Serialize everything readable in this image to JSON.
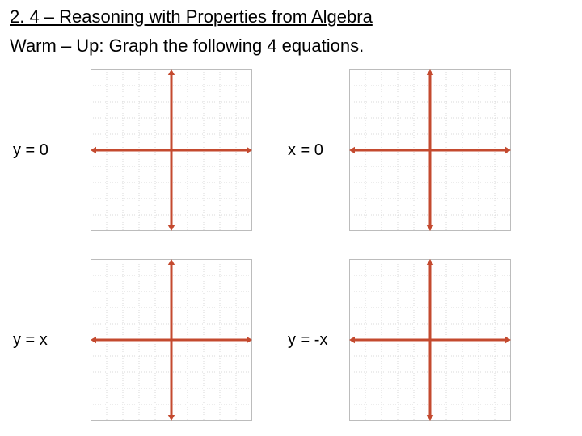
{
  "title": "2. 4 – Reasoning with Properties from Algebra",
  "subtitle": "Warm – Up: Graph the following 4 equations.",
  "equations": {
    "eq1": "y = 0",
    "eq2": "x = 0",
    "eq3": "y = x",
    "eq4": "y = -x"
  },
  "chart": {
    "grid": {
      "size": 200,
      "ticks": 10,
      "major_every": 5,
      "minor_color": "#d8d8d8",
      "major_color": "#bcbcbc",
      "border_color": "#bcbcbc",
      "background": "#ffffff",
      "minor_dash": "1,2"
    },
    "axis": {
      "color": "#c44a2f",
      "width": 3,
      "arrow_size": 7
    },
    "graphs": {
      "g1": {
        "show_x_axis": true,
        "show_y_axis": true
      },
      "g2": {
        "show_x_axis": true,
        "show_y_axis": true
      },
      "g3": {
        "show_x_axis": true,
        "show_y_axis": true
      },
      "g4": {
        "show_x_axis": true,
        "show_y_axis": true
      }
    }
  }
}
